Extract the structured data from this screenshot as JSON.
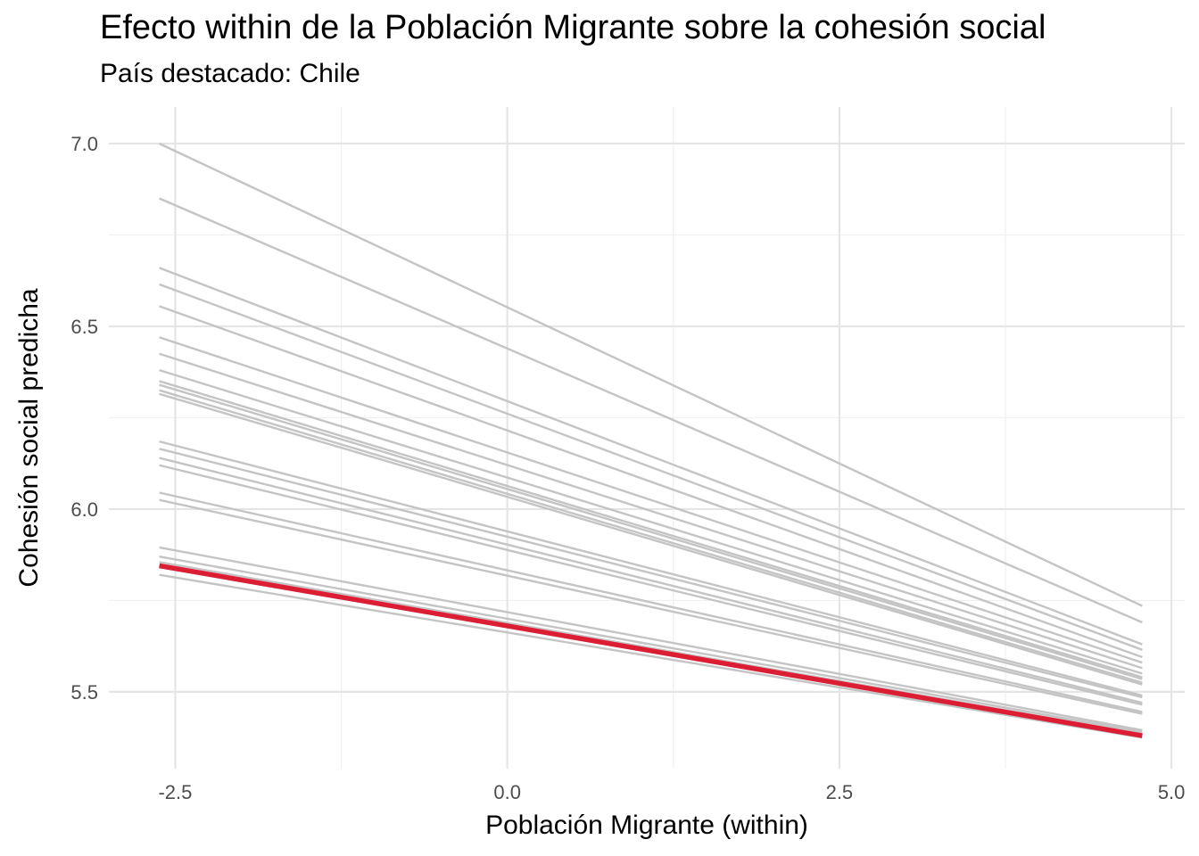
{
  "chart_data": {
    "type": "line",
    "title": "Efecto within de la Población Migrante sobre la cohesión social",
    "subtitle": "País destacado: Chile",
    "xlabel": "Población Migrante (within)",
    "ylabel": "Cohesión social predicha",
    "xlim": [
      -3.0,
      5.1
    ],
    "ylim": [
      5.29,
      7.1
    ],
    "x_ticks": [
      -2.5,
      0.0,
      2.5,
      5.0
    ],
    "x_tick_labels": [
      "-2.5",
      "0.0",
      "2.5",
      "5.0"
    ],
    "y_ticks": [
      5.5,
      6.0,
      6.5,
      7.0
    ],
    "y_tick_labels": [
      "5.5",
      "6.0",
      "6.5",
      "7.0"
    ],
    "grid": true,
    "x": [
      -2.62,
      4.78
    ],
    "series": [
      {
        "values": [
          7.0,
          5.735
        ],
        "highlight": false
      },
      {
        "values": [
          6.85,
          5.69
        ],
        "highlight": false
      },
      {
        "values": [
          6.66,
          5.63
        ],
        "highlight": false
      },
      {
        "values": [
          6.615,
          5.615
        ],
        "highlight": false
      },
      {
        "values": [
          6.555,
          5.595
        ],
        "highlight": false
      },
      {
        "values": [
          6.47,
          5.58
        ],
        "highlight": false
      },
      {
        "values": [
          6.425,
          5.565
        ],
        "highlight": false
      },
      {
        "values": [
          6.38,
          5.55
        ],
        "highlight": false
      },
      {
        "values": [
          6.35,
          5.54
        ],
        "highlight": false
      },
      {
        "values": [
          6.34,
          5.535
        ],
        "highlight": false
      },
      {
        "values": [
          6.325,
          5.525
        ],
        "highlight": false
      },
      {
        "values": [
          6.315,
          5.52
        ],
        "highlight": false
      },
      {
        "values": [
          6.185,
          5.49
        ],
        "highlight": false
      },
      {
        "values": [
          6.165,
          5.485
        ],
        "highlight": false
      },
      {
        "values": [
          6.14,
          5.47
        ],
        "highlight": false
      },
      {
        "values": [
          6.12,
          5.465
        ],
        "highlight": false
      },
      {
        "values": [
          6.045,
          5.445
        ],
        "highlight": false
      },
      {
        "values": [
          6.025,
          5.44
        ],
        "highlight": false
      },
      {
        "values": [
          5.895,
          5.395
        ],
        "highlight": false
      },
      {
        "values": [
          5.87,
          5.39
        ],
        "highlight": false
      },
      {
        "values": [
          5.855,
          5.385
        ],
        "highlight": false
      },
      {
        "values": [
          5.82,
          5.375
        ],
        "highlight": false
      },
      {
        "name": "Chile",
        "values": [
          5.845,
          5.38
        ],
        "highlight": true
      }
    ],
    "colors": {
      "highlight": "#dc1e35",
      "others": "#c4c4c4",
      "grid_major": "#e5e5e5",
      "grid_minor": "#f0f0f0"
    }
  }
}
